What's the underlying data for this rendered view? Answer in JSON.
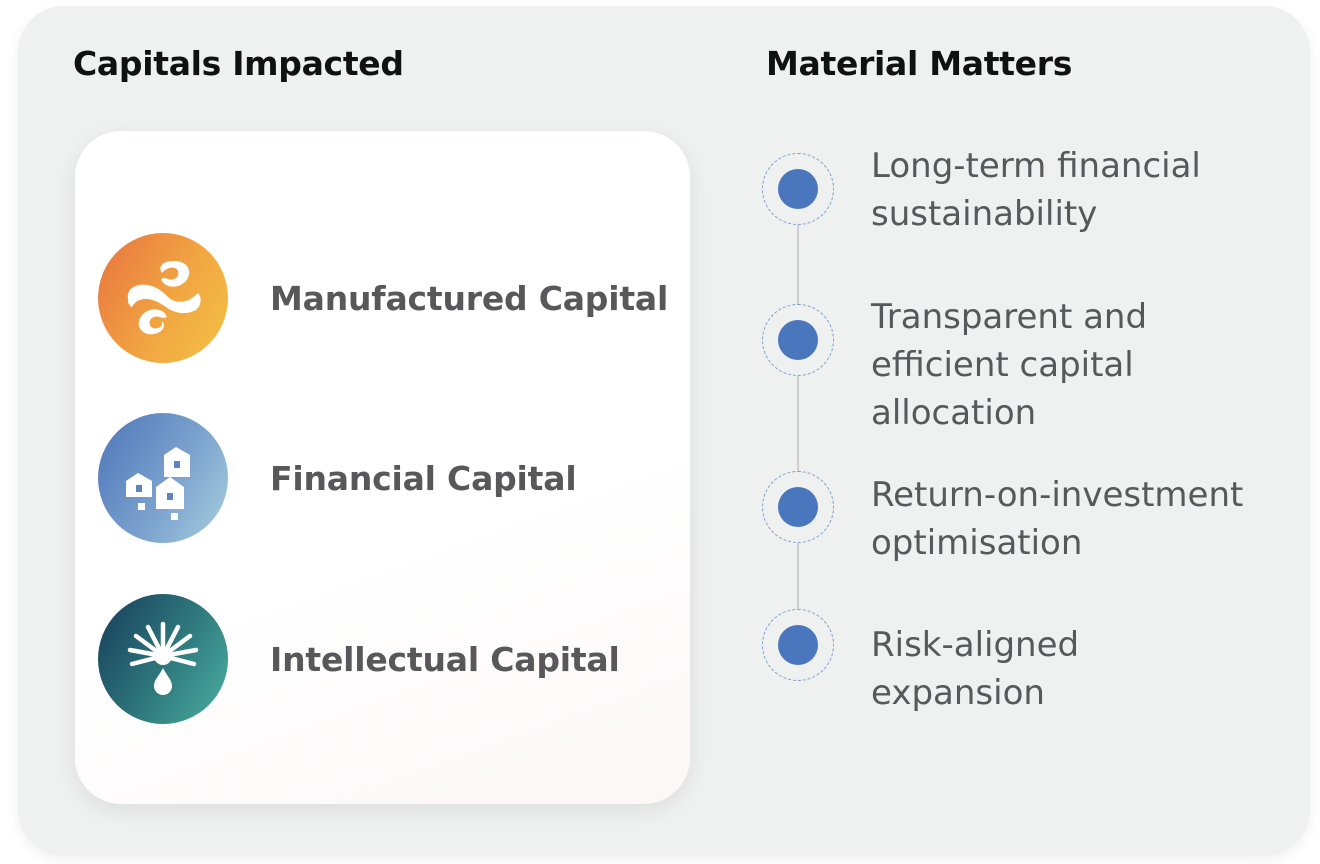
{
  "headings": {
    "capitals": "Capitals Impacted",
    "matters": "Material Matters"
  },
  "capitals": [
    {
      "label": "Manufactured Capital",
      "icon": "manufactured-capital-icon",
      "color_from": "#e8733f",
      "color_to": "#f4c345"
    },
    {
      "label": "Financial Capital",
      "icon": "financial-capital-icon",
      "color_from": "#4d75b9",
      "color_to": "#a9d0df"
    },
    {
      "label": "Intellectual Capital",
      "icon": "intellectual-capital-icon",
      "color_from": "#173c5a",
      "color_to": "#4db0a2"
    }
  ],
  "matters": [
    {
      "lines": [
        "Long-term financial",
        "sustainability"
      ]
    },
    {
      "lines": [
        "Transparent and",
        "efficient capital",
        "allocation"
      ]
    },
    {
      "lines": [
        "Return-on-investment",
        "optimisation"
      ]
    },
    {
      "lines": [
        "Risk-aligned",
        "expansion"
      ]
    }
  ],
  "colors": {
    "panel_bg": "#eff0f0",
    "dot": "#4a76bd",
    "text": "#58585a"
  }
}
